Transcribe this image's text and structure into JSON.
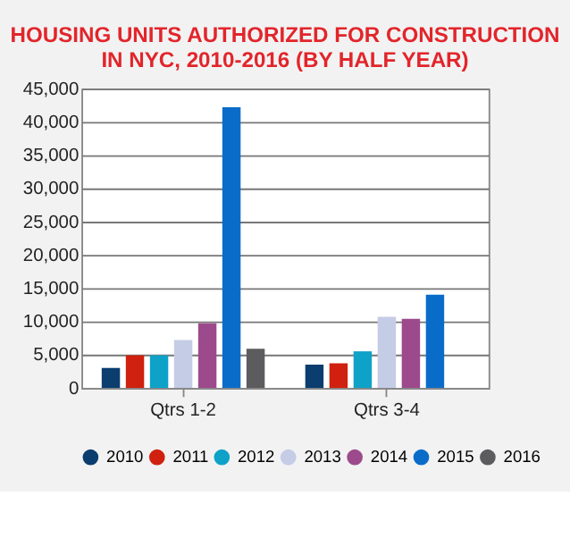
{
  "chart_data": {
    "type": "bar",
    "title": [
      "HOUSING UNITS AUTHORIZED FOR CONSTRUCTION",
      "IN NYC, 2010-2016 (BY HALF YEAR)"
    ],
    "categories": [
      "Qtrs 1-2",
      "Qtrs 3-4"
    ],
    "series": [
      {
        "name": "2010",
        "color": "#0b3d6e",
        "values": [
          3000,
          3500
        ]
      },
      {
        "name": "2011",
        "color": "#d0200f",
        "values": [
          4900,
          3700
        ]
      },
      {
        "name": "2012",
        "color": "#0ea2c8",
        "values": [
          4900,
          5500
        ]
      },
      {
        "name": "2013",
        "color": "#c4cce6",
        "values": [
          7200,
          10700
        ]
      },
      {
        "name": "2014",
        "color": "#9c4a8c",
        "values": [
          9700,
          10400
        ]
      },
      {
        "name": "2015",
        "color": "#0a6cc9",
        "values": [
          42200,
          14000
        ]
      },
      {
        "name": "2016",
        "color": "#5c5c5e",
        "values": [
          5900,
          null
        ]
      }
    ],
    "ylim": [
      0,
      45000
    ],
    "yticks": [
      0,
      {
        "value": 5000,
        "label": "5,000"
      },
      {
        "value": 10000,
        "label": "10,000"
      },
      {
        "value": 15000,
        "label": "15,000"
      },
      {
        "value": 20000,
        "label": "20,000"
      },
      {
        "value": 25000,
        "label": "25,000"
      },
      {
        "value": 30000,
        "label": "30,000"
      },
      {
        "value": 35000,
        "label": "35,000"
      },
      {
        "value": 40000,
        "label": "40,000"
      },
      {
        "value": 45000,
        "label": "45,000"
      }
    ],
    "grid": "y",
    "legend": "bottom"
  }
}
